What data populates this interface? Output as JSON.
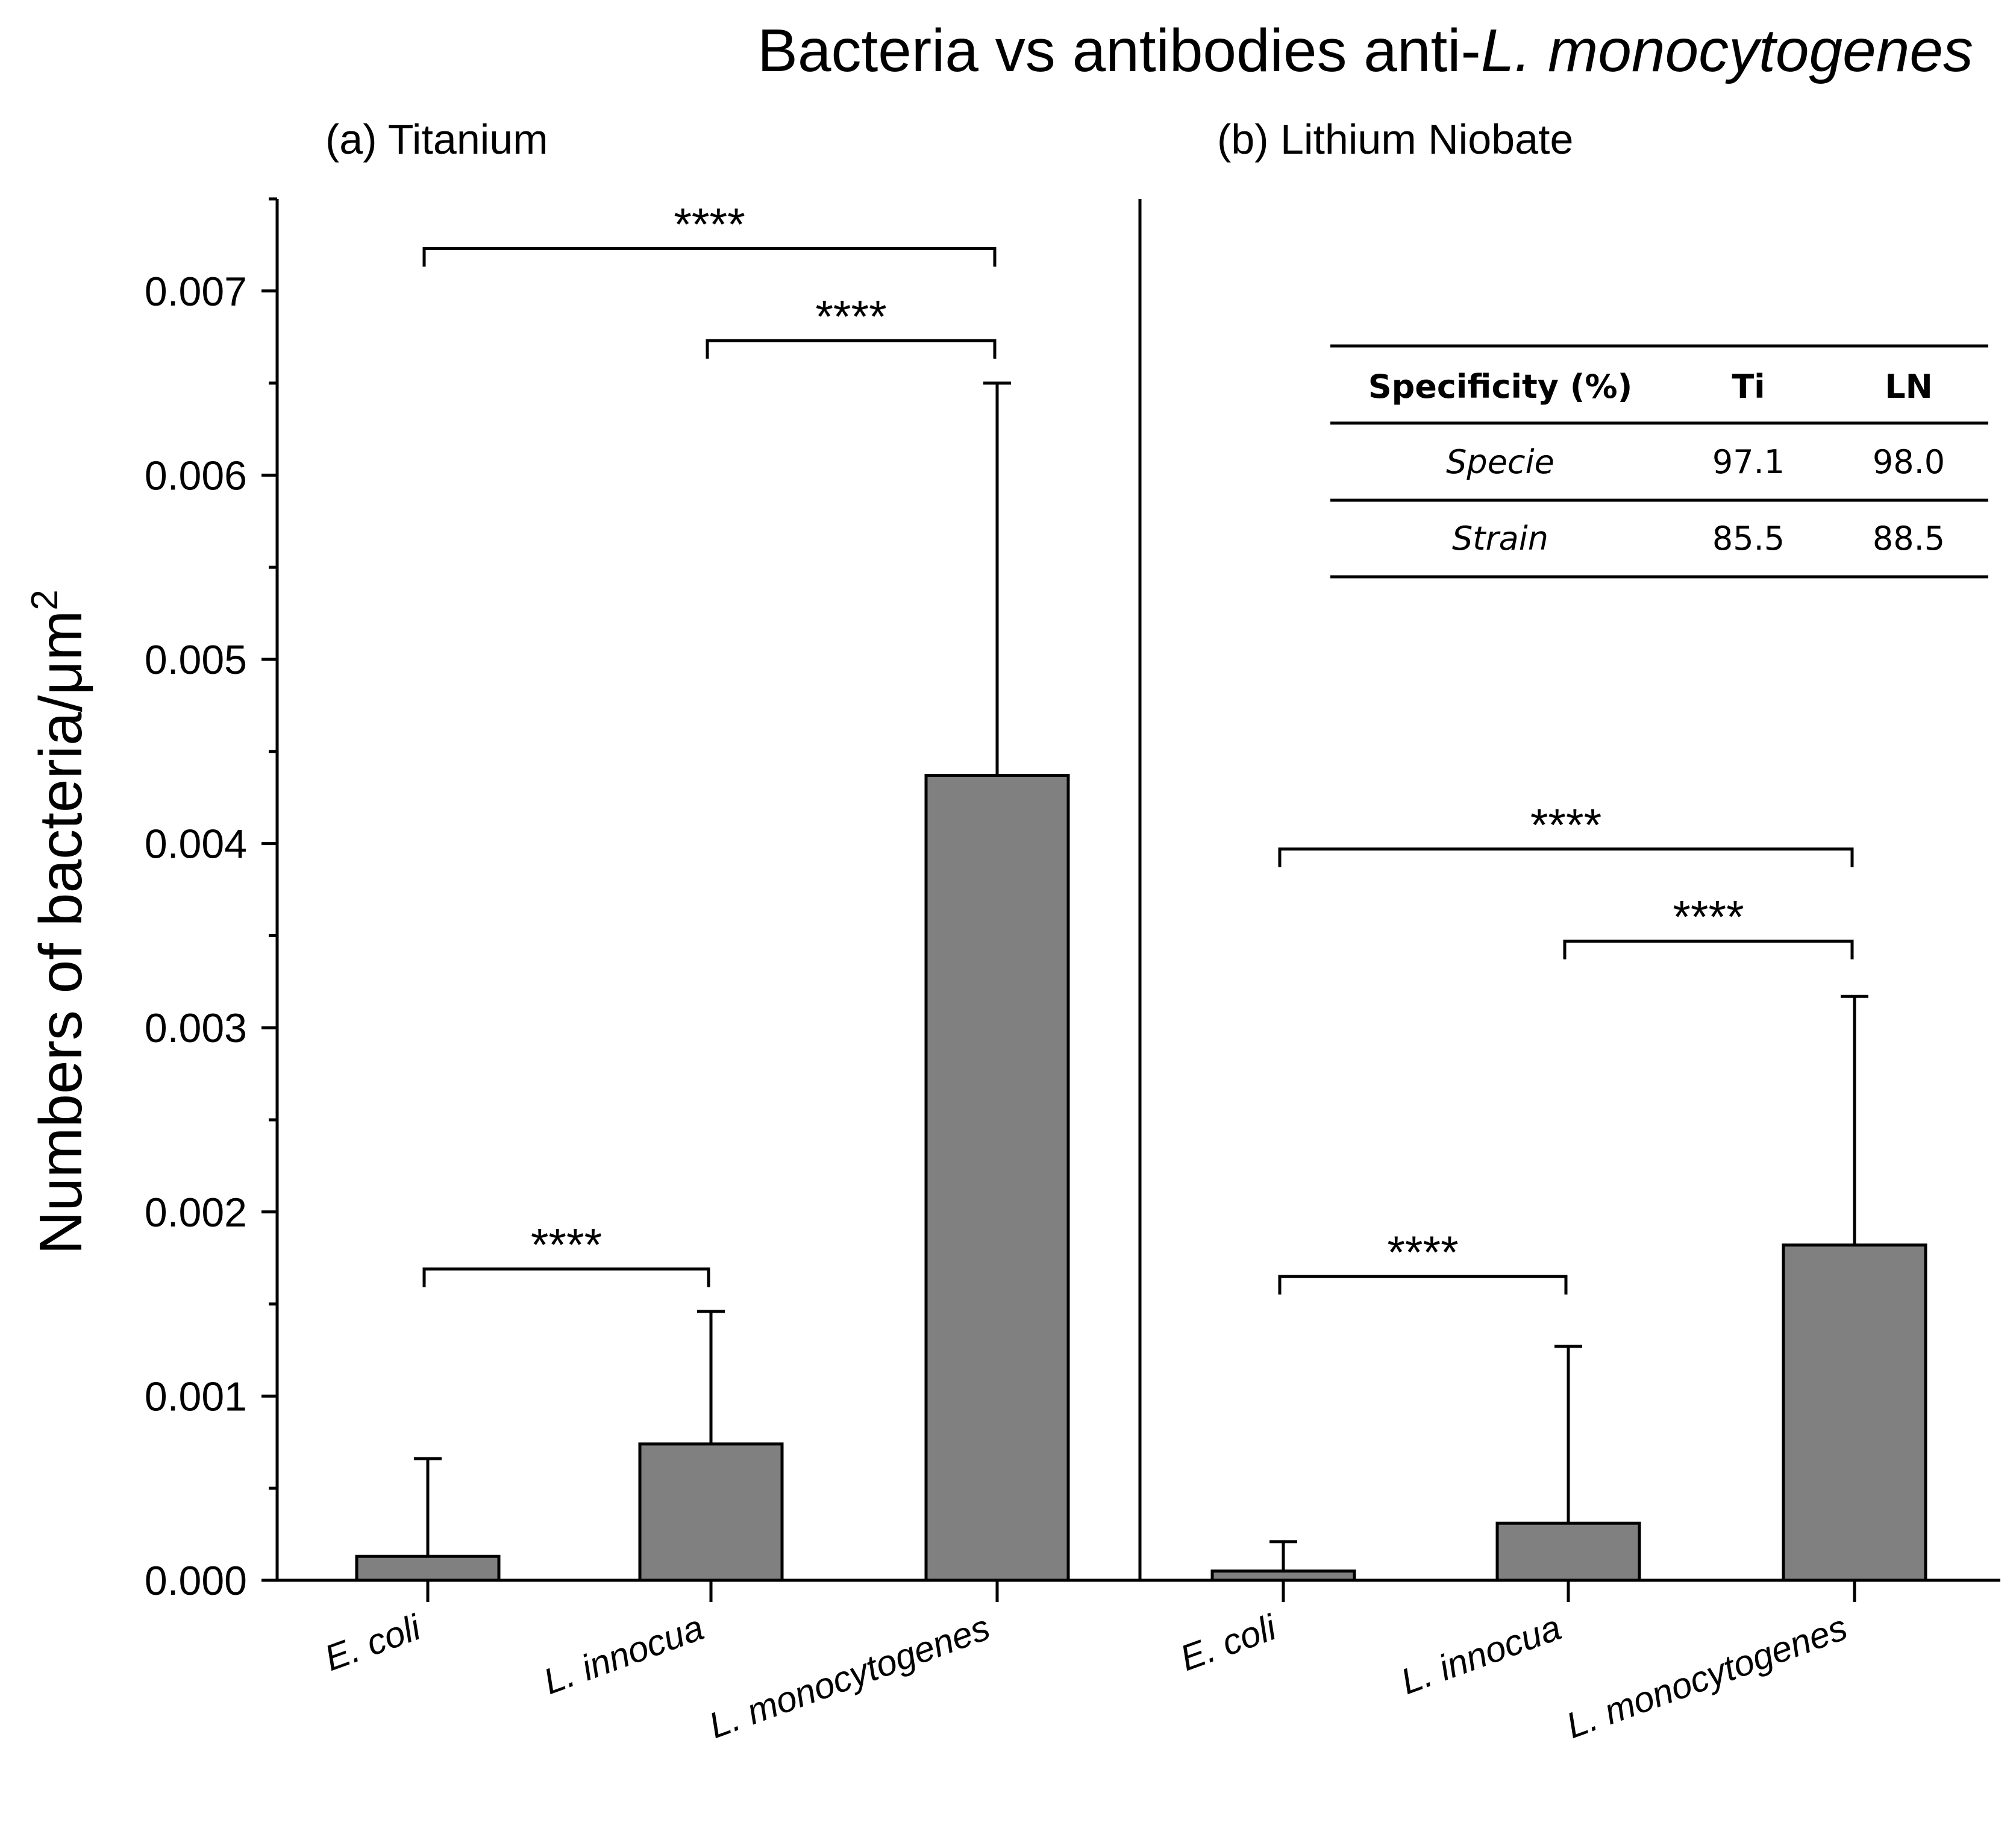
{
  "chart_data": {
    "type": "bar",
    "title_main": "Bacteria vs antibodies anti-",
    "title_italic": "L. monocytogenes",
    "ylabel": "Numbers of bacteria/μm",
    "ylabel_sup": "2",
    "ylim": [
      0,
      0.0075
    ],
    "yticks": [
      "0.000",
      "0.001",
      "0.002",
      "0.003",
      "0.004",
      "0.005",
      "0.006",
      "0.007"
    ],
    "ytick_values": [
      0,
      0.001,
      0.002,
      0.003,
      0.004,
      0.005,
      0.006,
      0.007
    ],
    "bar_color": "#808080",
    "panels": [
      {
        "label": "(a) Titanium",
        "categories": [
          "E. coli",
          "L. innocua",
          "L. monocytogenes"
        ],
        "values": [
          0.00013,
          0.00074,
          0.00437
        ],
        "errors": [
          0.00053,
          0.00072,
          0.00213
        ],
        "significance": [
          {
            "from": 0,
            "to": 2,
            "y": 0.00723,
            "label": "****"
          },
          {
            "from": 1,
            "to": 2,
            "y": 0.00673,
            "label": "****"
          },
          {
            "from": 0,
            "to": 1,
            "y": 0.00169,
            "label": "****"
          }
        ]
      },
      {
        "label": "(b) Lithium Niobate",
        "categories": [
          "E. coli",
          "L. innocua",
          "L. monocytogenes"
        ],
        "values": [
          5e-05,
          0.00031,
          0.00182
        ],
        "errors": [
          0.00016,
          0.00096,
          0.00135
        ],
        "significance": [
          {
            "from": 0,
            "to": 2,
            "y": 0.00397,
            "label": "****"
          },
          {
            "from": 1,
            "to": 2,
            "y": 0.00347,
            "label": "****"
          },
          {
            "from": 0,
            "to": 1,
            "y": 0.00165,
            "label": "****"
          }
        ]
      }
    ],
    "table": {
      "headers": [
        "Specificity (%)",
        "Ti",
        "LN"
      ],
      "rows": [
        [
          "Specie",
          "97.1",
          "98.0"
        ],
        [
          "Strain",
          "85.5",
          "88.5"
        ]
      ]
    }
  }
}
